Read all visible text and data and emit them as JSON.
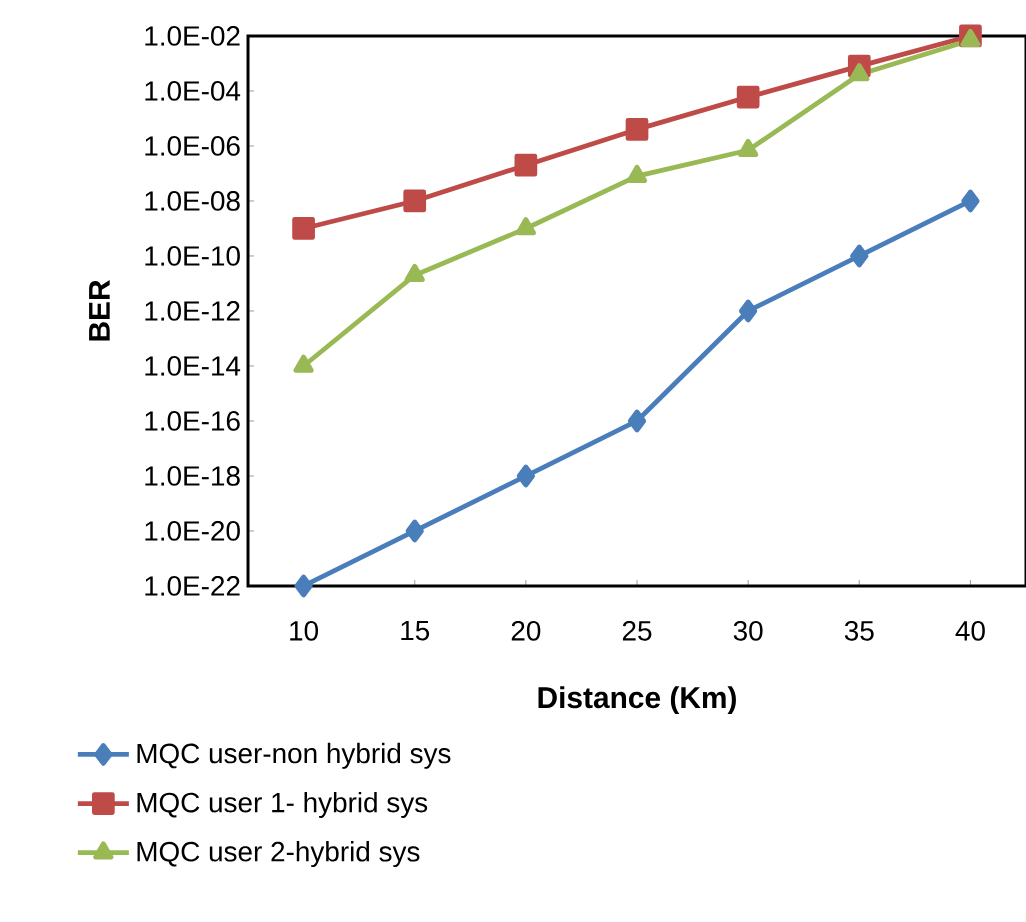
{
  "chart_data": {
    "type": "line",
    "xlabel": "Distance (Km)",
    "ylabel": "BER",
    "categories": [
      "10",
      "15",
      "20",
      "25",
      "30",
      "35",
      "40"
    ],
    "series": [
      {
        "name": "MQC user-non hybrid sys",
        "color": "#4a7ebb",
        "marker": "diamond",
        "values": [
          1e-22,
          1e-20,
          1e-18,
          1e-16,
          1e-12,
          1e-10,
          1e-08
        ]
      },
      {
        "name": "MQC user 1- hybrid sys",
        "color": "#be4b48",
        "marker": "square",
        "values": [
          1e-09,
          1e-08,
          2e-07,
          4e-06,
          6e-05,
          0.0008,
          0.01
        ]
      },
      {
        "name": "MQC user 2-hybrid sys",
        "color": "#98b954",
        "marker": "triangle",
        "values": [
          1e-14,
          2e-11,
          1e-09,
          8e-08,
          7e-07,
          0.0004,
          0.007
        ]
      }
    ],
    "log": "y",
    "ylim": [
      1e-22,
      0.01
    ],
    "yticks": [
      {
        "value": 1e-22,
        "label": "1.0E-22"
      },
      {
        "value": 1e-20,
        "label": "1.0E-20"
      },
      {
        "value": 1e-18,
        "label": "1.0E-18"
      },
      {
        "value": 1e-16,
        "label": "1.0E-16"
      },
      {
        "value": 1e-14,
        "label": "1.0E-14"
      },
      {
        "value": 1e-12,
        "label": "1.0E-12"
      },
      {
        "value": 1e-10,
        "label": "1.0E-10"
      },
      {
        "value": 1e-08,
        "label": "1.0E-08"
      },
      {
        "value": 1e-06,
        "label": "1.0E-06"
      },
      {
        "value": 0.0001,
        "label": "1.0E-04"
      },
      {
        "value": 0.01,
        "label": "1.0E-02"
      }
    ],
    "grid": false,
    "legend": "bottom",
    "line_style": "solid"
  }
}
